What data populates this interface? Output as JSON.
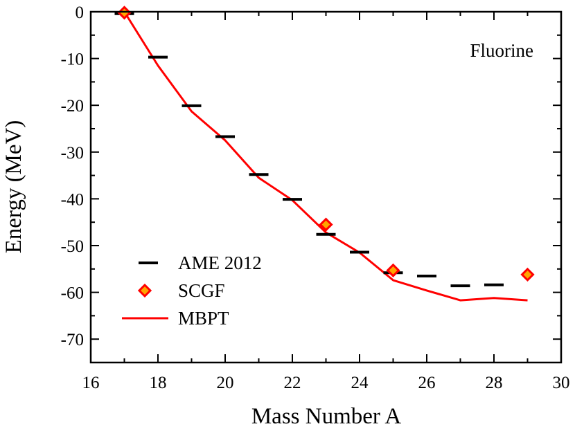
{
  "chart_data": {
    "type": "scatter",
    "xlabel": "Mass Number A",
    "ylabel": "Energy (MeV)",
    "annotation": "Fluorine",
    "xlim": [
      16,
      30
    ],
    "ylim": [
      -75,
      0
    ],
    "xticks": [
      16,
      18,
      20,
      22,
      24,
      26,
      28,
      30
    ],
    "yticks": [
      0,
      -10,
      -20,
      -30,
      -40,
      -50,
      -60,
      -70
    ],
    "legend_position": "bottom-left",
    "series": [
      {
        "name": "AME 2012",
        "marker": "dash",
        "color": "#000000",
        "x": [
          17,
          18,
          19,
          20,
          21,
          22,
          23,
          24,
          25,
          26,
          27,
          28
        ],
        "y": [
          -0.4,
          -9.7,
          -20.1,
          -26.7,
          -34.8,
          -40.1,
          -47.6,
          -51.4,
          -55.8,
          -56.5,
          -58.6,
          -58.4
        ]
      },
      {
        "name": "SCGF",
        "marker": "diamond",
        "color": "#ff0000",
        "fill": "#ffa500",
        "x": [
          17,
          23,
          25,
          29
        ],
        "y": [
          -0.2,
          -45.5,
          -55.3,
          -56.2
        ]
      },
      {
        "name": "MBPT",
        "marker": "line",
        "color": "#ff0000",
        "x": [
          17,
          18,
          19,
          20,
          21,
          22,
          23,
          24,
          25,
          26,
          27,
          28,
          29
        ],
        "y": [
          0,
          -11.5,
          -21.3,
          -27.5,
          -35.5,
          -40.3,
          -47.2,
          -51.5,
          -57.4,
          -59.6,
          -61.7,
          -61.2,
          -61.7
        ]
      }
    ]
  }
}
